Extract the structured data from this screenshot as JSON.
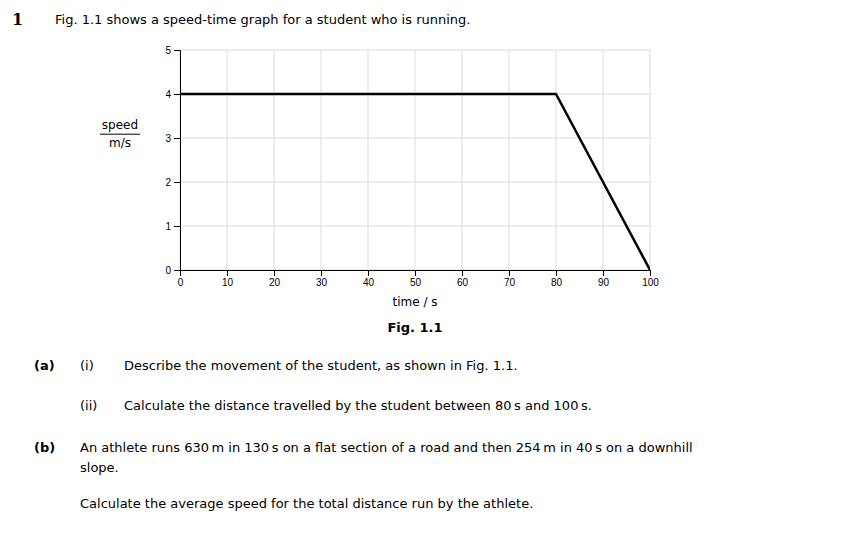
{
  "chart_data": {
    "type": "line",
    "title": "Fig. 1.1 shows a speed-time graph for a student who is running.",
    "xlabel": "time / s",
    "ylabel": "speed\nm/s",
    "x": [
      0,
      80,
      100
    ],
    "series": [
      {
        "values": [
          4,
          4,
          0
        ],
        "color": "#000000"
      }
    ],
    "xlim": [
      0,
      100
    ],
    "ylim": [
      0,
      5
    ],
    "xticks": [
      0,
      10,
      20,
      30,
      40,
      50,
      60,
      70,
      80,
      90,
      100
    ],
    "yticks": [
      0,
      1,
      2,
      3,
      4,
      5
    ],
    "grid": true,
    "annotations": [
      "1",
      "Fig. 1.1",
      "(a)",
      "(i)",
      "Describe the movement of the student, as shown in Fig. 1.1.",
      "(ii)",
      "Calculate the distance travelled by the student between 80 s and 100 s.",
      "(b)",
      "An athlete runs 630 m in 130 s on a flat section of a road and then 254 m in 40 s on a downhill",
      "slope.",
      "Calculate the average speed for the total distance run by the athlete."
    ]
  }
}
